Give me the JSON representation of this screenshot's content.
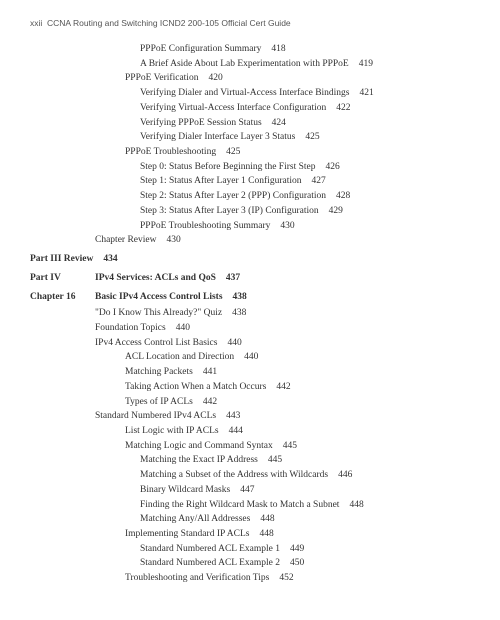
{
  "header": {
    "page_roman": "xxii",
    "book_title": "CCNA Routing and Switching ICND2 200-105 Official Cert Guide"
  },
  "toc": [
    {
      "level": 3,
      "bold": false,
      "text": "PPPoE Configuration Summary",
      "page": "418"
    },
    {
      "level": 3,
      "bold": false,
      "text": "A Brief Aside About Lab Experimentation with PPPoE",
      "page": "419"
    },
    {
      "level": 2,
      "bold": false,
      "text": "PPPoE Verification",
      "page": "420"
    },
    {
      "level": 3,
      "bold": false,
      "text": "Verifying Dialer and Virtual-Access Interface Bindings",
      "page": "421"
    },
    {
      "level": 3,
      "bold": false,
      "text": "Verifying Virtual-Access Interface Configuration",
      "page": "422"
    },
    {
      "level": 3,
      "bold": false,
      "text": "Verifying PPPoE Session Status",
      "page": "424"
    },
    {
      "level": 3,
      "bold": false,
      "text": "Verifying Dialer Interface Layer 3 Status",
      "page": "425"
    },
    {
      "level": 2,
      "bold": false,
      "text": "PPPoE Troubleshooting",
      "page": "425"
    },
    {
      "level": 3,
      "bold": false,
      "text": "Step 0: Status Before Beginning the First Step",
      "page": "426"
    },
    {
      "level": 3,
      "bold": false,
      "text": "Step 1: Status After Layer 1 Configuration",
      "page": "427"
    },
    {
      "level": 3,
      "bold": false,
      "text": "Step 2: Status After Layer 2 (PPP) Configuration",
      "page": "428"
    },
    {
      "level": 3,
      "bold": false,
      "text": "Step 3: Status After Layer 3 (IP) Configuration",
      "page": "429"
    },
    {
      "level": 3,
      "bold": false,
      "text": "PPPoE Troubleshooting Summary",
      "page": "430"
    },
    {
      "level": 1,
      "bold": false,
      "text": "Chapter Review",
      "page": "430"
    },
    {
      "level": 0,
      "bold": true,
      "part_label": "Part III Review",
      "text": "",
      "page": "434",
      "is_part": true,
      "single": true
    },
    {
      "level": 0,
      "bold": true,
      "part_label": "Part IV",
      "text": "IPv4 Services: ACLs and QoS",
      "page": "437",
      "is_part": true
    },
    {
      "level": 0,
      "bold": true,
      "part_label": "Chapter 16",
      "text": "Basic IPv4 Access Control Lists",
      "page": "438",
      "is_part": true
    },
    {
      "level": 1,
      "bold": false,
      "text": "\"Do I Know This Already?\" Quiz",
      "page": "438"
    },
    {
      "level": 1,
      "bold": false,
      "text": "Foundation Topics",
      "page": "440"
    },
    {
      "level": 1,
      "bold": false,
      "text": "IPv4 Access Control List Basics",
      "page": "440"
    },
    {
      "level": 2,
      "bold": false,
      "text": "ACL Location and Direction",
      "page": "440"
    },
    {
      "level": 2,
      "bold": false,
      "text": "Matching Packets",
      "page": "441"
    },
    {
      "level": 2,
      "bold": false,
      "text": "Taking Action When a Match Occurs",
      "page": "442"
    },
    {
      "level": 2,
      "bold": false,
      "text": "Types of IP ACLs",
      "page": "442"
    },
    {
      "level": 1,
      "bold": false,
      "text": "Standard Numbered IPv4 ACLs",
      "page": "443"
    },
    {
      "level": 2,
      "bold": false,
      "text": "List Logic with IP ACLs",
      "page": "444"
    },
    {
      "level": 2,
      "bold": false,
      "text": "Matching Logic and Command Syntax",
      "page": "445"
    },
    {
      "level": 3,
      "bold": false,
      "text": "Matching the Exact IP Address",
      "page": "445"
    },
    {
      "level": 3,
      "bold": false,
      "text": "Matching a Subset of the Address with Wildcards",
      "page": "446"
    },
    {
      "level": 3,
      "bold": false,
      "text": "Binary Wildcard Masks",
      "page": "447"
    },
    {
      "level": 3,
      "bold": false,
      "text": "Finding the Right Wildcard Mask to Match a Subnet",
      "page": "448"
    },
    {
      "level": 3,
      "bold": false,
      "text": "Matching Any/All Addresses",
      "page": "448"
    },
    {
      "level": 2,
      "bold": false,
      "text": "Implementing Standard IP ACLs",
      "page": "448"
    },
    {
      "level": 3,
      "bold": false,
      "text": "Standard Numbered ACL Example 1",
      "page": "449"
    },
    {
      "level": 3,
      "bold": false,
      "text": "Standard Numbered ACL Example 2",
      "page": "450"
    },
    {
      "level": 2,
      "bold": false,
      "text": "Troubleshooting and Verification Tips",
      "page": "452"
    }
  ]
}
